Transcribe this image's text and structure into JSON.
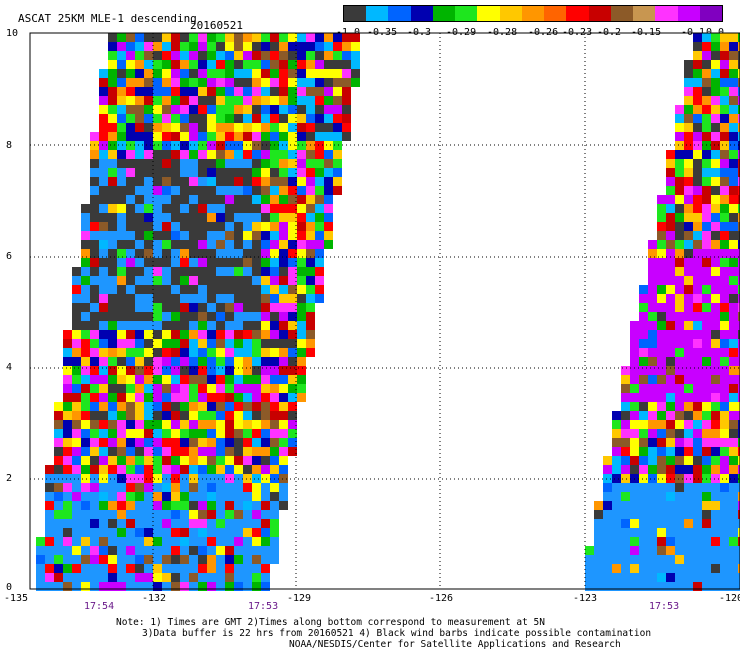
{
  "title": "ASCAT 25KM MLE-1 descending",
  "date": "20160521",
  "colorbar": {
    "segments": [
      "#3a3a3a",
      "#00b8ff",
      "#0064ff",
      "#0000b0",
      "#00b400",
      "#1ee61e",
      "#ffff00",
      "#ffc800",
      "#ff9600",
      "#ff6400",
      "#ff0000",
      "#c80000",
      "#8c5a28",
      "#c89650",
      "#ff32ff",
      "#c800ff",
      "#8000c0"
    ],
    "labels": [
      "-1.0",
      "-0.35",
      "-0.3",
      "-0.29",
      "-0.28",
      "-0.26",
      "-0.23",
      "-0.2",
      "-0.15",
      "-0.1",
      "0.0"
    ]
  },
  "axes": {
    "y_ticks": [
      "10",
      "8",
      "6",
      "4",
      "2",
      "0"
    ],
    "x_ticks": [
      "-135",
      "-132",
      "-129",
      "-126",
      "-123",
      "-120"
    ],
    "times": [
      "17:54",
      "17:53",
      "17:53"
    ]
  },
  "notes": [
    "Note: 1) Times are GMT 2)Times along bottom correspond to measurement at 5N",
    "3)Data buffer is 22 hrs from 20160521 4) Black wind barbs indicate possible contamination",
    "NOAA/NESDIS/Center for Satellite Applications and Research"
  ]
}
